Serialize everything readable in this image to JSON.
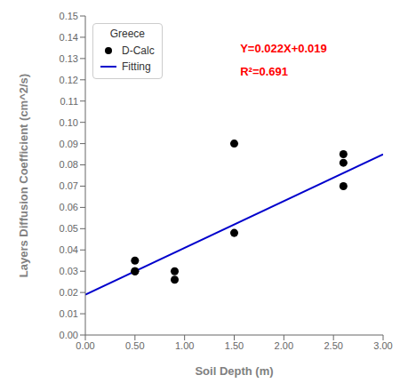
{
  "chart_data": {
    "type": "scatter",
    "x_label": "Soil Depth (m)",
    "y_label": "Layers Diffusion Coefficient (cm^2/s)",
    "xlim": [
      0.0,
      3.0
    ],
    "ylim": [
      0.0,
      0.15
    ],
    "xticks": [
      {
        "value": 0.0,
        "label": "0.00"
      },
      {
        "value": 0.5,
        "label": "0.50"
      },
      {
        "value": 1.0,
        "label": "1.00"
      },
      {
        "value": 1.5,
        "label": "1.50"
      },
      {
        "value": 2.0,
        "label": "2.00"
      },
      {
        "value": 2.5,
        "label": "2.50"
      },
      {
        "value": 3.0,
        "label": "3.00"
      }
    ],
    "yticks": [
      {
        "value": 0.0,
        "label": "0.00"
      },
      0.01,
      0.02,
      0.03,
      0.04,
      0.05,
      0.06,
      0.07,
      0.08,
      0.09,
      {
        "value": 0.1,
        "label": "0.10"
      },
      0.11,
      0.12,
      0.13,
      0.14,
      0.15
    ],
    "legend": "upper left",
    "legend_title": "Greece",
    "series": [
      {
        "name": "D-Calc",
        "type": "scatter",
        "marker": "circle",
        "color": "#000000",
        "x": [
          0.5,
          0.5,
          0.5,
          0.9,
          0.9,
          1.5,
          1.5,
          2.6,
          2.6,
          2.6
        ],
        "values": [
          0.035,
          0.03,
          0.03,
          0.026,
          0.03,
          0.09,
          0.048,
          0.085,
          0.081,
          0.07
        ]
      },
      {
        "name": "Fitting",
        "type": "line",
        "line_style": "solid",
        "color": "#0000cc",
        "x": [
          0.0,
          3.0
        ],
        "values": [
          0.019,
          0.085
        ]
      }
    ],
    "annotations": [
      {
        "text": "Y=0.022X+0.019",
        "color": "#ff0000"
      },
      {
        "text": "R²=0.691",
        "color": "#ff0000"
      }
    ]
  }
}
